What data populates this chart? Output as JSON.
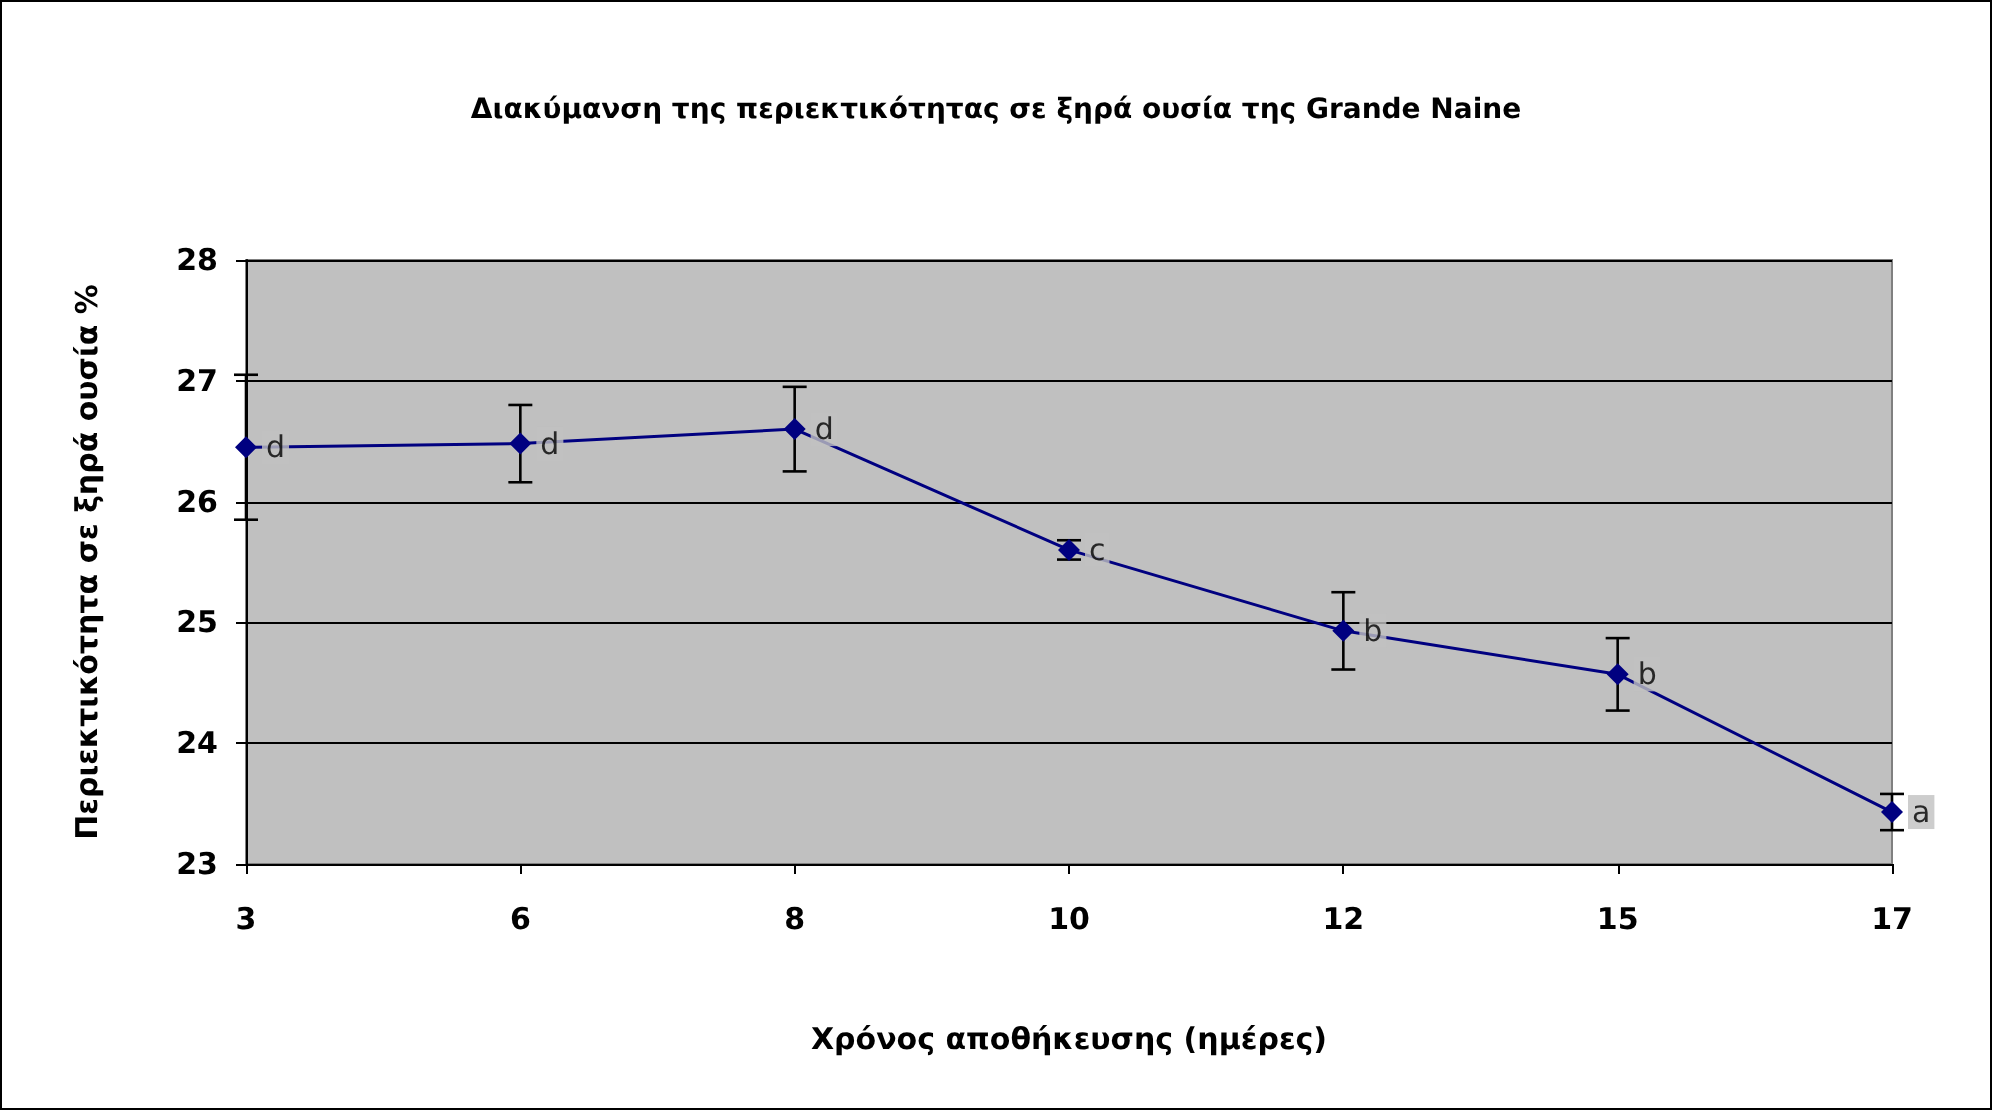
{
  "chart_data": {
    "type": "line",
    "title": "Διακύμανση της περιεκτικότητας σε ξηρά ουσία της Grande Naine",
    "xlabel": "Χρόνος αποθήκευσης (ημέρες)",
    "ylabel": "Περιεκτικότητα σε ξηρά ουσία %",
    "categories": [
      "3",
      "6",
      "8",
      "10",
      "12",
      "15",
      "17"
    ],
    "series": [
      {
        "color": "#000080",
        "values": [
          26.45,
          26.48,
          26.6,
          25.6,
          24.93,
          24.57,
          23.43
        ],
        "errors": [
          0.6,
          0.32,
          0.35,
          0.08,
          0.32,
          0.3,
          0.15
        ]
      }
    ],
    "ylim": [
      23,
      28
    ],
    "yticks": [
      23,
      24,
      25,
      26,
      27,
      28
    ],
    "grid": "y",
    "marker": "diamond",
    "line_style": "solid",
    "annotations": [
      {
        "text": "d",
        "x": "3",
        "y": 26.45
      },
      {
        "text": "d",
        "x": "6",
        "y": 26.48
      },
      {
        "text": "d",
        "x": "8",
        "y": 26.6
      },
      {
        "text": "c",
        "x": "10",
        "y": 25.6
      },
      {
        "text": "b",
        "x": "12",
        "y": 24.93
      },
      {
        "text": "b",
        "x": "15",
        "y": 24.57
      },
      {
        "text": "a",
        "x": "17",
        "y": 23.43
      }
    ]
  }
}
